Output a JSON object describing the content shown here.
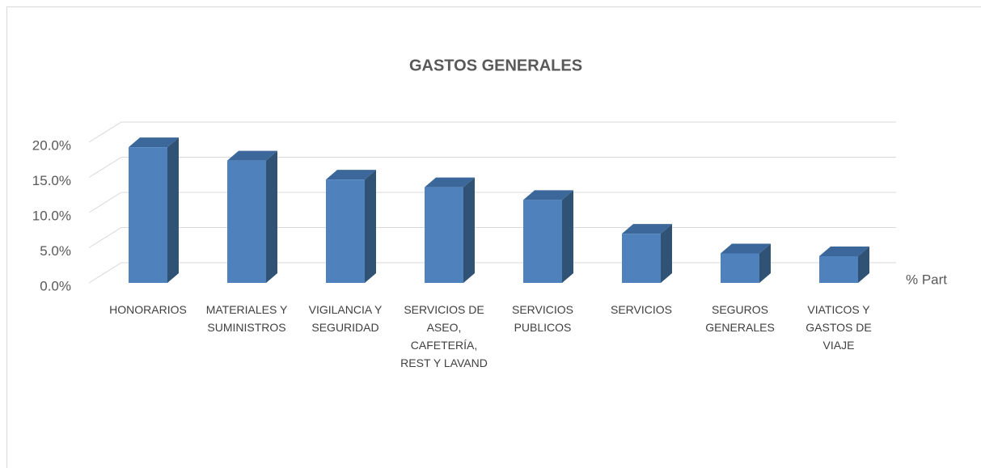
{
  "chart_data": {
    "type": "bar3d",
    "title": "GASTOS GENERALES",
    "categories": [
      "HONORARIOS",
      "MATERIALES Y SUMINISTROS",
      "VIGILANCIA Y SEGURIDAD",
      "SERVICIOS DE ASEO, CAFETERÍA, REST Y LAVAND",
      "SERVICIOS PUBLICOS",
      "SERVICIOS",
      "SEGUROS GENERALES",
      "VIATICOS Y GASTOS DE VIAJE"
    ],
    "series": [
      {
        "name": "% Part",
        "color": "#4f81bd",
        "values": [
          19.3,
          17.4,
          14.7,
          13.6,
          11.8,
          7.0,
          4.2,
          3.8
        ]
      }
    ],
    "ylim": [
      0,
      20
    ],
    "yticks": [
      {
        "value": 0,
        "label": "0.0%"
      },
      {
        "value": 5,
        "label": "5.0%"
      },
      {
        "value": 10,
        "label": "10.0%"
      },
      {
        "value": 15,
        "label": "15.0%"
      },
      {
        "value": 20,
        "label": "20.0%"
      }
    ],
    "grid": true,
    "legend": "right"
  }
}
